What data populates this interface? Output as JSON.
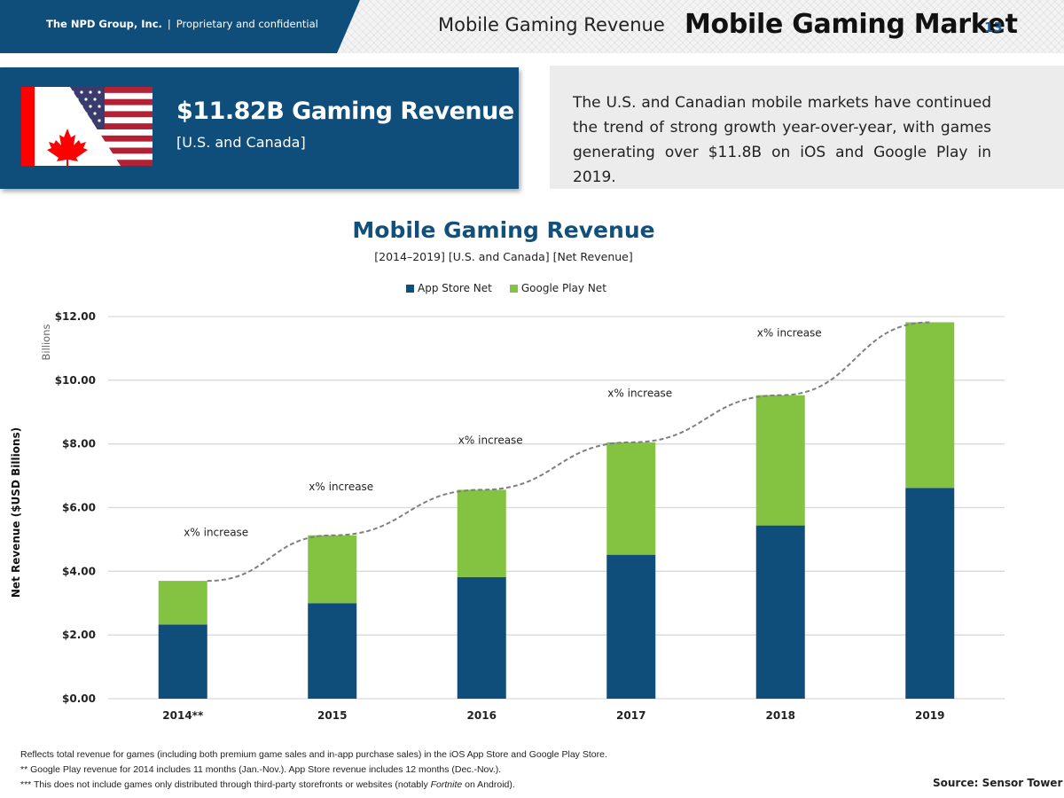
{
  "header": {
    "company": "The NPD Group, Inc.",
    "separator": "|",
    "confidential": "Proprietary and confidential",
    "section": "Mobile Gaming Revenue",
    "title": "Mobile Gaming Market",
    "page_number": "13",
    "band_color": "#0f4d7a"
  },
  "summary_card": {
    "headline": "$11.82B Gaming Revenue",
    "region": "[U.S. and Canada]",
    "flag_icon": "us-canada-flag-icon",
    "color": "#0f4d7a"
  },
  "info_box": {
    "text": "The U.S. and Canadian mobile markets have continued the trend of strong growth year-over-year, with games generating over $11.8B on iOS and Google Play in 2019."
  },
  "chart_data": {
    "type": "bar",
    "stacked": true,
    "title": "Mobile Gaming Revenue",
    "subtitle": "[2014–2019] [U.S. and Canada] [Net Revenue]",
    "xlabel": "",
    "ylabel": "Net Revenue ($USD Billions)",
    "units_label": "Billions",
    "ylim": [
      0,
      12
    ],
    "yticks": [
      0,
      2,
      4,
      6,
      8,
      10,
      12
    ],
    "ytick_labels": [
      "$0.00",
      "$2.00",
      "$4.00",
      "$6.00",
      "$8.00",
      "$10.00",
      "$12.00"
    ],
    "categories": [
      "2014**",
      "2015",
      "2016",
      "2017",
      "2018",
      "2019"
    ],
    "series": [
      {
        "name": "App Store Net",
        "color": "#0f4d7a",
        "values": [
          2.33,
          3.0,
          3.82,
          4.52,
          5.44,
          6.62
        ]
      },
      {
        "name": "Google Play Net",
        "color": "#84c341",
        "values": [
          1.37,
          2.13,
          2.74,
          3.53,
          4.09,
          5.2
        ]
      }
    ],
    "legend_position": "top-center",
    "grid": true,
    "trendline": {
      "style": "dashed",
      "color": "#7f7f7f",
      "values": [
        3.7,
        5.13,
        6.56,
        8.05,
        9.53,
        11.82
      ]
    },
    "annotations": [
      "x% increase",
      "x% increase",
      "x% increase",
      "x% increase",
      "x% increase"
    ]
  },
  "footnotes": {
    "line1": "Reflects total revenue for games (including both premium game sales and in-app purchase sales) in the iOS App Store and Google Play Store.",
    "line2": "** Google Play revenue for 2014 includes 11 months (Jan.-Nov.). App Store revenue includes 12 months (Dec.-Nov.).",
    "line3_prefix": "*** This does not include games only distributed through third-party storefronts or websites (notably ",
    "line3_italic": "Fortnite",
    "line3_suffix": " on Android)."
  },
  "source": "Source: Sensor Tower"
}
